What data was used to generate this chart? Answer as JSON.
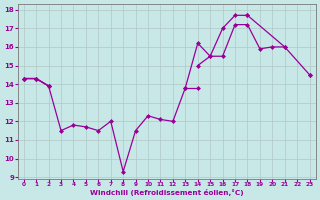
{
  "background_color": "#c8e8e8",
  "grid_color": "#b0c8c8",
  "line_color": "#990099",
  "xlabel": "Windchill (Refroidissement éolien,°C)",
  "xlim": [
    -0.5,
    23.5
  ],
  "ylim": [
    9,
    18
  ],
  "yticks": [
    9,
    10,
    11,
    12,
    13,
    14,
    15,
    16,
    17,
    18
  ],
  "xticks": [
    0,
    1,
    2,
    3,
    4,
    5,
    6,
    7,
    8,
    9,
    10,
    11,
    12,
    13,
    14,
    15,
    16,
    17,
    18,
    19,
    20,
    21,
    22,
    23
  ],
  "line1": {
    "x": [
      0,
      1,
      2,
      3,
      4,
      5,
      6,
      7,
      8,
      9,
      10,
      11,
      12,
      13,
      14,
      15,
      16,
      17,
      18
    ],
    "y": [
      14.3,
      14.3,
      13.9,
      11.5,
      11.8,
      11.7,
      11.5,
      12.0,
      9.3,
      11.5,
      12.3,
      12.1,
      12.0,
      13.8,
      16.2,
      15.5,
      17.0,
      17.7,
      17.7
    ]
  },
  "line2_segments": [
    {
      "x": [
        0,
        1,
        2
      ],
      "y": [
        14.3,
        14.3,
        13.9
      ]
    },
    {
      "x": [
        14,
        15,
        16,
        17,
        18,
        19,
        20,
        21
      ],
      "y": [
        15.0,
        15.5,
        15.5,
        17.2,
        17.2,
        15.9,
        16.0,
        16.0
      ]
    },
    {
      "x": [
        23
      ],
      "y": [
        14.5
      ]
    }
  ],
  "line3_segments": [
    {
      "x": [
        0,
        1,
        2
      ],
      "y": [
        14.3,
        14.3,
        13.9
      ]
    },
    {
      "x": [
        13,
        14
      ],
      "y": [
        13.8,
        13.8
      ]
    },
    {
      "x": [
        18,
        21,
        23
      ],
      "y": [
        17.7,
        16.0,
        14.5
      ]
    }
  ]
}
